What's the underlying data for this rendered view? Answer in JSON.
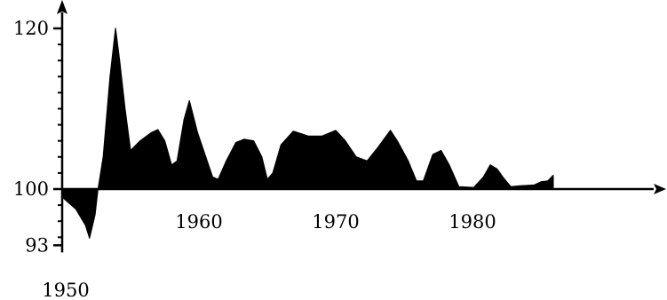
{
  "chart_data": {
    "type": "area",
    "title": "",
    "xlabel": "",
    "ylabel": "",
    "baseline": 100,
    "xlim": [
      1950,
      1987
    ],
    "ylim": [
      93,
      122
    ],
    "y_ticks": [
      {
        "value": 120,
        "label": "120"
      },
      {
        "value": 100,
        "label": "100"
      },
      {
        "value": 93,
        "label": "93"
      }
    ],
    "x_ticks": [
      {
        "value": 1950,
        "label": "1950"
      },
      {
        "value": 1960,
        "label": "1960"
      },
      {
        "value": 1970,
        "label": "1970"
      },
      {
        "value": 1980,
        "label": "1980"
      }
    ],
    "x": [
      1950.0,
      1951.0,
      1951.7,
      1952.0,
      1952.4,
      1952.6,
      1953.0,
      1953.5,
      1953.9,
      1954.2,
      1954.6,
      1955.0,
      1955.7,
      1956.5,
      1957.0,
      1957.5,
      1958.0,
      1958.4,
      1958.9,
      1959.3,
      1959.9,
      1960.5,
      1961.0,
      1961.4,
      1962.0,
      1962.7,
      1963.3,
      1964.0,
      1964.6,
      1965.0,
      1965.4,
      1966.0,
      1966.9,
      1968.0,
      1969.0,
      1970.0,
      1970.7,
      1971.5,
      1972.3,
      1973.0,
      1974.0,
      1974.5,
      1975.3,
      1975.9,
      1976.4,
      1977.1,
      1977.7,
      1978.3,
      1979.0,
      1980.1,
      1980.8,
      1981.3,
      1981.8,
      1982.3,
      1982.8,
      1983.5,
      1984.5,
      1985.0,
      1985.5,
      1985.9
    ],
    "values": [
      99.0,
      97.5,
      95.5,
      93.9,
      96.8,
      99.7,
      104.0,
      114.0,
      120.0,
      116.0,
      110.0,
      104.8,
      106.0,
      107.0,
      107.4,
      106.0,
      103.0,
      103.5,
      108.6,
      111.0,
      107.0,
      104.0,
      101.5,
      101.2,
      103.5,
      105.8,
      106.2,
      106.0,
      104.0,
      101.2,
      102.0,
      105.5,
      107.2,
      106.6,
      106.6,
      107.3,
      106.0,
      104.0,
      103.5,
      105.0,
      107.3,
      106.0,
      103.5,
      101.0,
      101.0,
      104.3,
      104.8,
      103.0,
      100.3,
      100.2,
      101.5,
      103.0,
      102.5,
      101.3,
      100.3,
      100.4,
      100.5,
      100.9,
      101.0,
      101.7
    ]
  }
}
